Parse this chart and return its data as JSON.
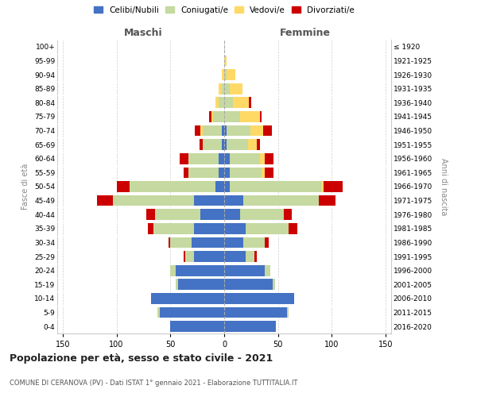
{
  "age_groups": [
    "0-4",
    "5-9",
    "10-14",
    "15-19",
    "20-24",
    "25-29",
    "30-34",
    "35-39",
    "40-44",
    "45-49",
    "50-54",
    "55-59",
    "60-64",
    "65-69",
    "70-74",
    "75-79",
    "80-84",
    "85-89",
    "90-94",
    "95-99",
    "100+"
  ],
  "birth_years": [
    "2016-2020",
    "2011-2015",
    "2006-2010",
    "2001-2005",
    "1996-2000",
    "1991-1995",
    "1986-1990",
    "1981-1985",
    "1976-1980",
    "1971-1975",
    "1966-1970",
    "1961-1965",
    "1956-1960",
    "1951-1955",
    "1946-1950",
    "1941-1945",
    "1936-1940",
    "1931-1935",
    "1926-1930",
    "1921-1925",
    "≤ 1920"
  ],
  "males": {
    "celibi": [
      50,
      60,
      68,
      43,
      45,
      28,
      30,
      28,
      22,
      28,
      8,
      5,
      5,
      2,
      2,
      0,
      0,
      0,
      0,
      0,
      0
    ],
    "coniugati": [
      0,
      2,
      0,
      2,
      5,
      8,
      20,
      38,
      42,
      75,
      80,
      28,
      28,
      18,
      18,
      10,
      5,
      2,
      0,
      0,
      0
    ],
    "vedovi": [
      0,
      0,
      0,
      0,
      0,
      0,
      0,
      0,
      0,
      0,
      0,
      0,
      0,
      0,
      2,
      2,
      3,
      3,
      2,
      0,
      0
    ],
    "divorziati": [
      0,
      0,
      0,
      0,
      0,
      2,
      2,
      5,
      8,
      15,
      12,
      5,
      8,
      3,
      5,
      2,
      0,
      0,
      0,
      0,
      0
    ]
  },
  "females": {
    "nubili": [
      48,
      58,
      65,
      45,
      38,
      20,
      18,
      20,
      15,
      18,
      5,
      5,
      5,
      2,
      2,
      0,
      0,
      0,
      0,
      0,
      0
    ],
    "coniugate": [
      0,
      2,
      0,
      2,
      5,
      8,
      20,
      40,
      40,
      70,
      85,
      30,
      28,
      20,
      22,
      15,
      8,
      5,
      2,
      0,
      0
    ],
    "vedove": [
      0,
      0,
      0,
      0,
      0,
      0,
      0,
      0,
      0,
      0,
      2,
      3,
      5,
      8,
      12,
      18,
      15,
      12,
      8,
      2,
      0
    ],
    "divorziate": [
      0,
      0,
      0,
      0,
      0,
      2,
      3,
      8,
      8,
      15,
      18,
      8,
      8,
      3,
      8,
      2,
      2,
      0,
      0,
      0,
      0
    ]
  },
  "colors": {
    "celibi": "#4472C4",
    "coniugati": "#C5D9A0",
    "vedovi": "#FFD966",
    "divorziati": "#CC0000"
  },
  "xlim": 155,
  "xtick_vals": [
    -150,
    -100,
    -50,
    0,
    50,
    100,
    150
  ],
  "title": "Popolazione per età, sesso e stato civile - 2021",
  "subtitle": "COMUNE DI CERANOVA (PV) - Dati ISTAT 1° gennaio 2021 - Elaborazione TUTTITALIA.IT",
  "ylabel_left": "Fasce di età",
  "ylabel_right": "Anni di nascita",
  "xlabel_maschi": "Maschi",
  "xlabel_femmine": "Femmine",
  "legend_labels": [
    "Celibi/Nubili",
    "Coniugati/e",
    "Vedovi/e",
    "Divorziati/e"
  ],
  "bg_color": "#ffffff",
  "grid_color": "#cccccc"
}
